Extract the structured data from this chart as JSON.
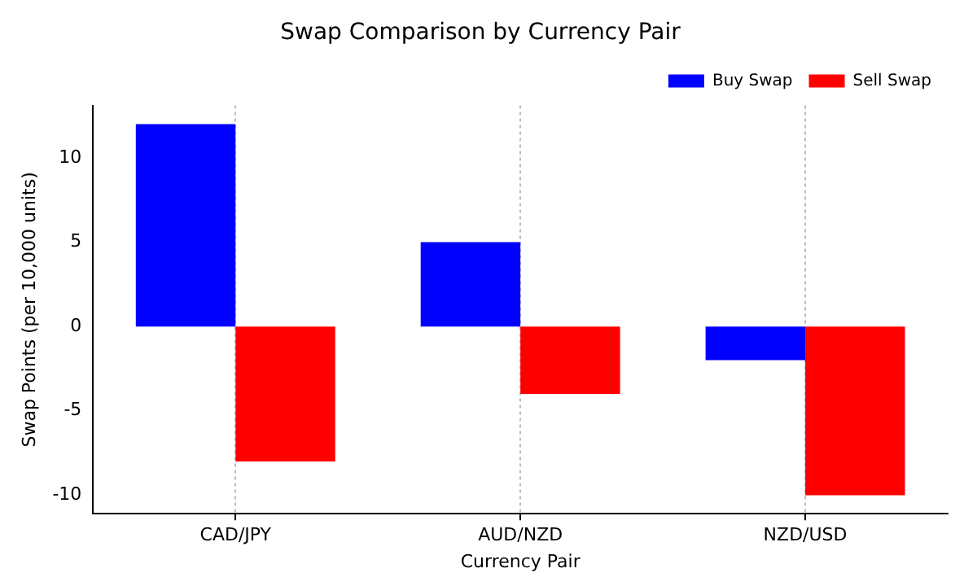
{
  "chart_data": {
    "type": "bar",
    "title": "Swap Comparison by Currency Pair",
    "xlabel": "Currency Pair",
    "ylabel": "Swap Points (per 10,000 units)",
    "categories": [
      "CAD/JPY",
      "AUD/NZD",
      "NZD/USD"
    ],
    "series": [
      {
        "name": "Buy Swap",
        "color": "#0000ff",
        "values": [
          12,
          5,
          -2
        ]
      },
      {
        "name": "Sell Swap",
        "color": "#ff0000",
        "values": [
          -8,
          -4,
          -10
        ]
      }
    ],
    "ylim": [
      -11.1,
      13.1
    ],
    "yticks": [
      -10,
      -5,
      0,
      5,
      10
    ],
    "grid": "x",
    "legend": "top right"
  }
}
